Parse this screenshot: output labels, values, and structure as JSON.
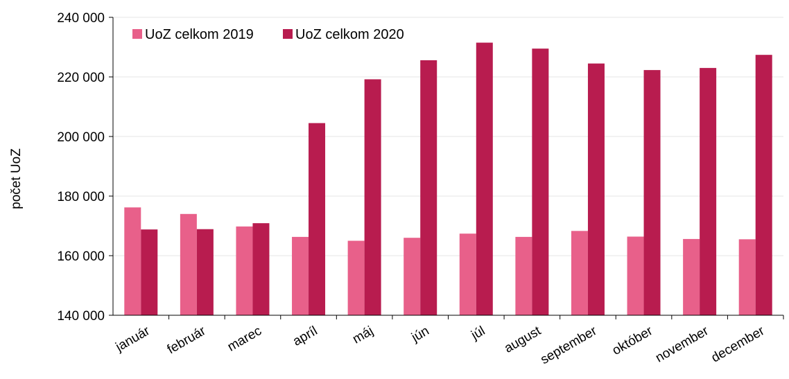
{
  "chart_data": {
    "type": "bar",
    "categories": [
      "január",
      "február",
      "marec",
      "apríl",
      "máj",
      "jún",
      "júl",
      "august",
      "september",
      "október",
      "november",
      "december"
    ],
    "series": [
      {
        "name": "UoZ celkom 2019",
        "color": "#e8608a",
        "values": [
          176200,
          174000,
          169800,
          166300,
          165000,
          166000,
          167400,
          166300,
          168300,
          166400,
          165600,
          165500
        ]
      },
      {
        "name": "UoZ celkom 2020",
        "color": "#b81c4f",
        "values": [
          168800,
          168900,
          170900,
          204500,
          219200,
          225600,
          231500,
          229500,
          224500,
          222300,
          223000,
          227400
        ]
      }
    ],
    "ylabel": "počet UoZ",
    "ylim": [
      140000,
      240000
    ],
    "yticks": [
      140000,
      160000,
      180000,
      200000,
      220000,
      240000
    ],
    "ytick_labels": [
      "140 000",
      "160 000",
      "180 000",
      "200 000",
      "220 000",
      "240 000"
    ],
    "grid": true,
    "legend_position": "top-left"
  }
}
